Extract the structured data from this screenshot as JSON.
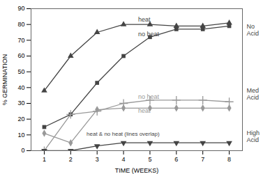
{
  "chart_data": {
    "type": "line",
    "x": [
      1,
      2,
      3,
      4,
      5,
      6,
      7,
      8
    ],
    "series": [
      {
        "color": "#444444",
        "marker": "triangle-up",
        "values": [
          38,
          60,
          75,
          80,
          80,
          79,
          79,
          81
        ]
      },
      {
        "color": "#444444",
        "marker": "square",
        "values": [
          15,
          23,
          43,
          60,
          72,
          77,
          77,
          79
        ]
      },
      {
        "color": "#999999",
        "marker": "plus",
        "values": [
          0,
          23,
          25,
          30,
          32,
          32,
          32,
          31
        ]
      },
      {
        "color": "#999999",
        "marker": "diamond",
        "values": [
          11,
          5,
          26,
          27,
          27,
          27,
          27,
          27
        ]
      },
      {
        "color": "#444444",
        "marker": "triangle-down",
        "values": [
          0,
          0,
          3,
          5,
          5,
          5,
          5,
          5
        ]
      }
    ],
    "xlim": [
      0.5,
      8.5
    ],
    "xticks": [
      1,
      2,
      3,
      4,
      5,
      6,
      7,
      8
    ],
    "ylim": [
      0,
      90
    ],
    "yticks": [
      0,
      10,
      20,
      30,
      40,
      50,
      60,
      70,
      80,
      90
    ],
    "xlabel": "TIME (WEEKS)",
    "ylabel": "% GERMINATION",
    "grid": false,
    "annotations": [
      {
        "text": "heat",
        "x": 4.55,
        "y": 83,
        "color": "#444444"
      },
      {
        "text": "no heat",
        "x": 4.55,
        "y": 74,
        "color": "#444444"
      },
      {
        "text": "no heat",
        "x": 4.55,
        "y": 34,
        "color": "#999999"
      },
      {
        "text": "heat",
        "x": 4.55,
        "y": 25.5,
        "color": "#999999"
      },
      {
        "text": "heat & no heat (lines overlap)",
        "x": 2.6,
        "y": 10.5,
        "color": "#444444"
      },
      {
        "text": "No\nAcid",
        "y": 76.5,
        "color": "#444444"
      },
      {
        "text": "Med\nAcid",
        "y": 36,
        "color": "#444444"
      },
      {
        "text": "High\nAcid",
        "y": 9,
        "color": "#444444"
      }
    ]
  }
}
